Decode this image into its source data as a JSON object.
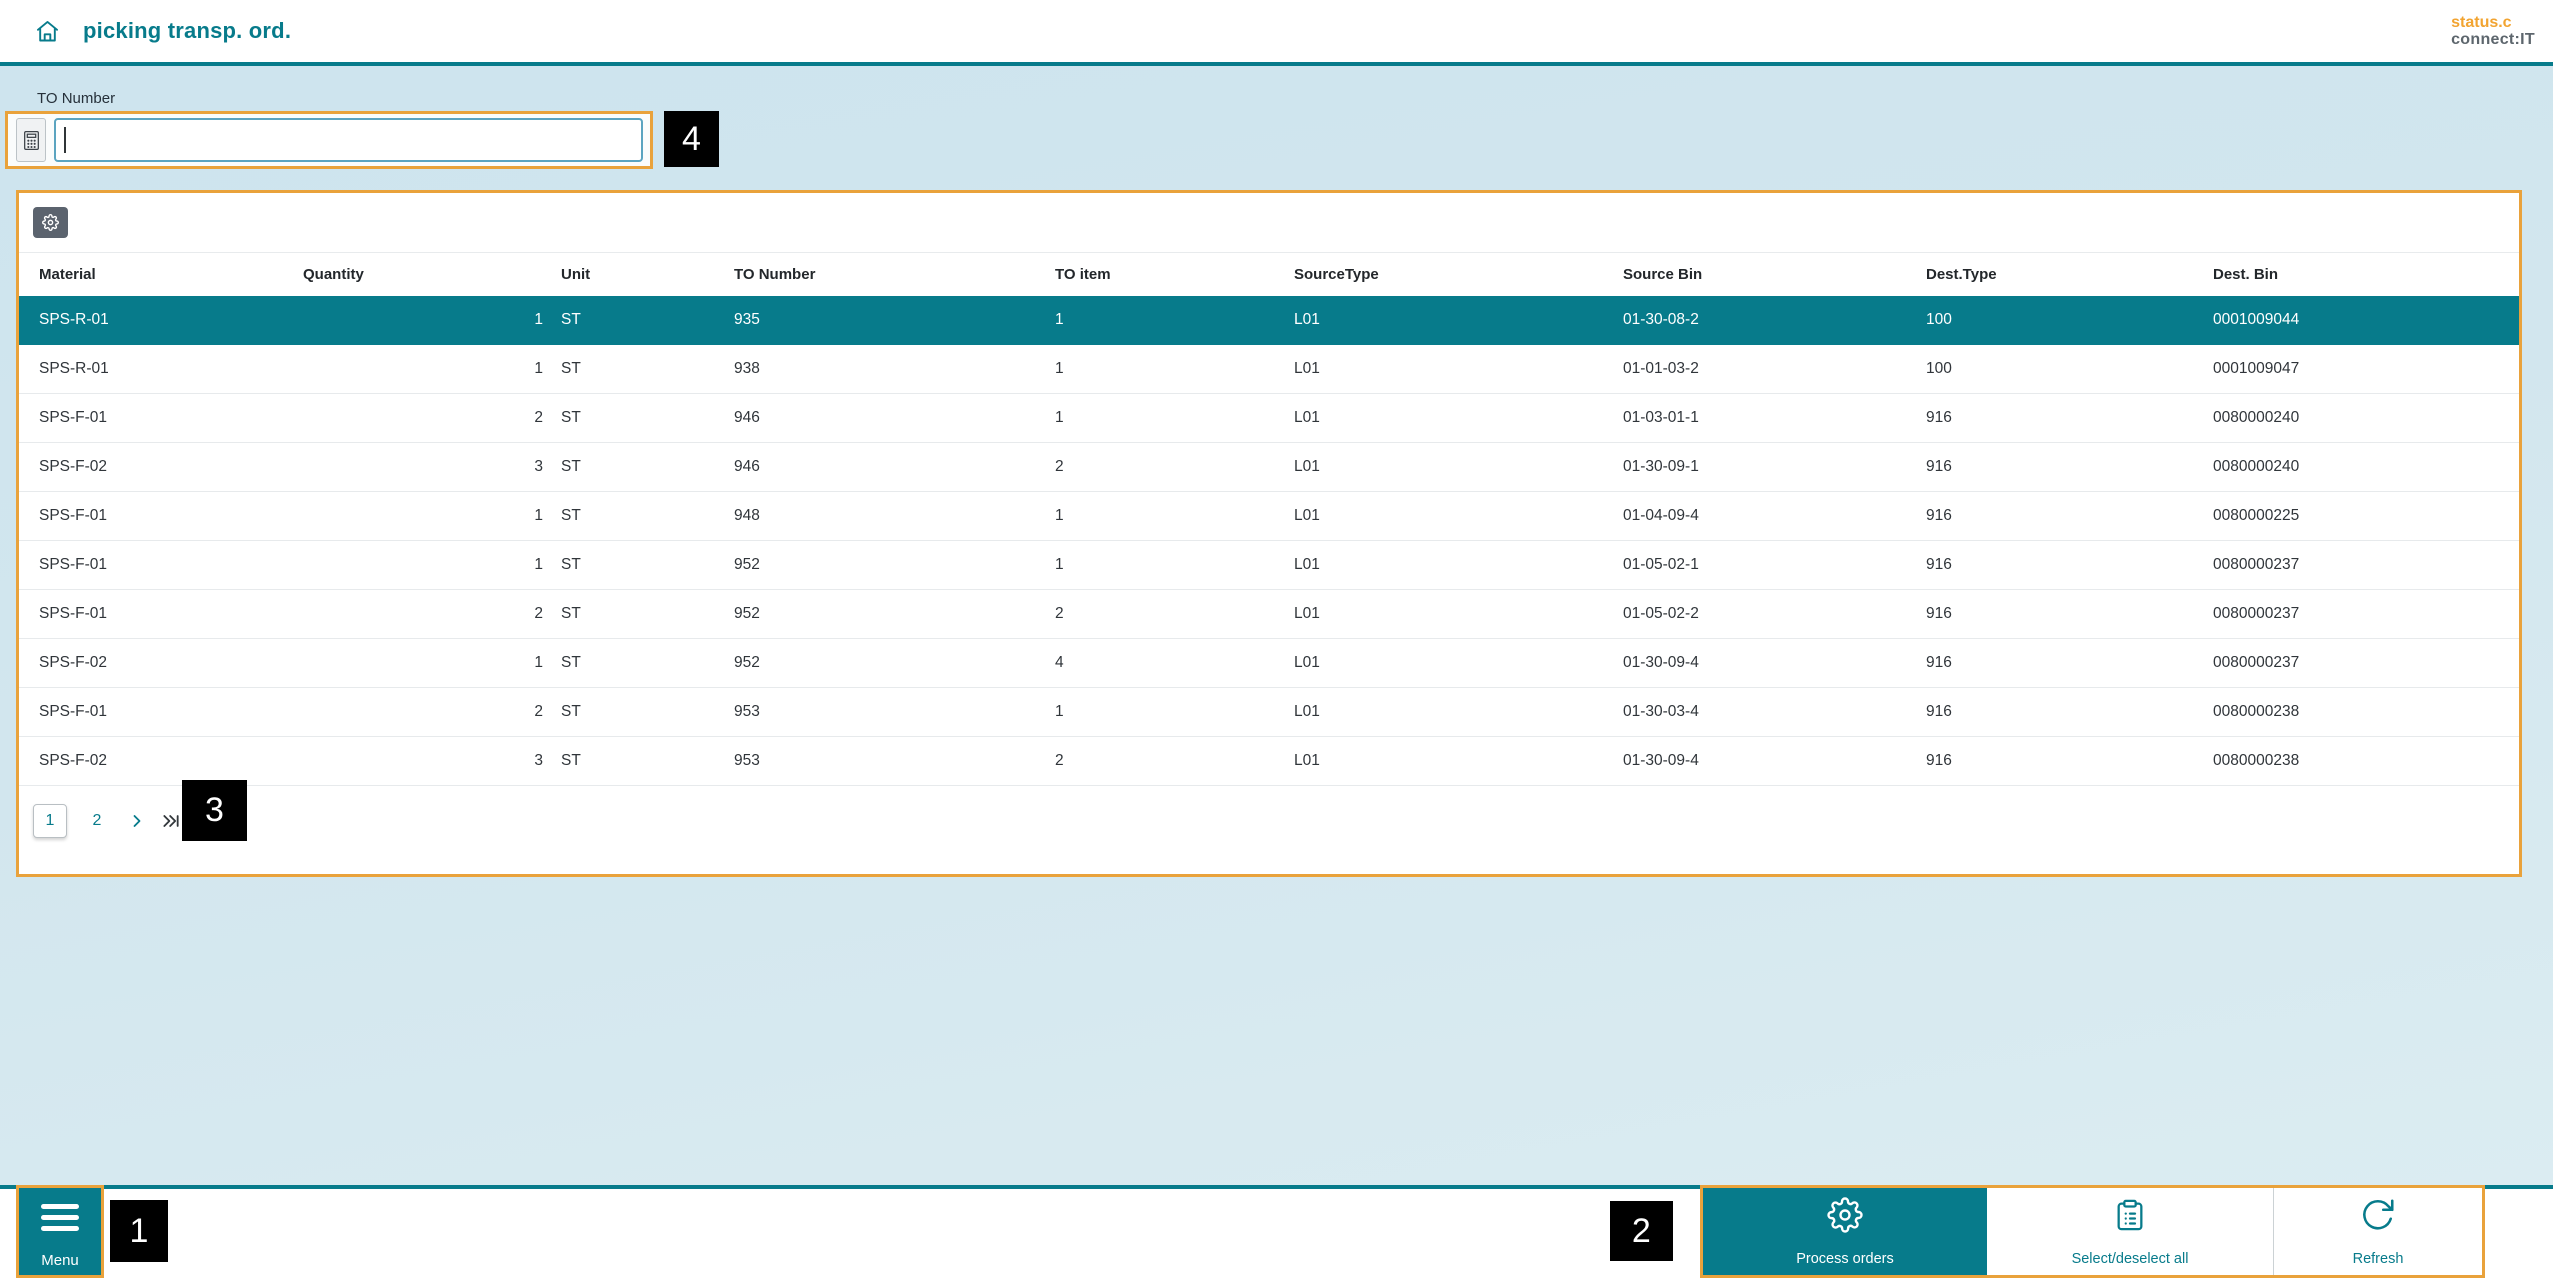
{
  "colors": {
    "accent": "#077b8b",
    "highlight": "#e9a23b",
    "logo_orange": "#f2a431",
    "logo_gray": "#5d666d",
    "page_bg_top": "#cde4ee",
    "page_bg_bottom": "#dcedf2",
    "selected_row_bg": "#077b8b",
    "annotation_bg": "#000000"
  },
  "header": {
    "title": "picking transp. ord.",
    "brand_line1": "status.c",
    "brand_line2": "connect:IT"
  },
  "filter": {
    "label": "TO Number",
    "value": ""
  },
  "table": {
    "columns": [
      "Material",
      "Quantity",
      "Unit",
      "TO Number",
      "TO item",
      "SourceType",
      "Source Bin",
      "Dest.Type",
      "Dest. Bin"
    ],
    "rows": [
      {
        "cells": [
          "SPS-R-01",
          "1",
          "ST",
          "935",
          "1",
          "L01",
          "01-30-08-2",
          "100",
          "0001009044"
        ],
        "selected": true
      },
      {
        "cells": [
          "SPS-R-01",
          "1",
          "ST",
          "938",
          "1",
          "L01",
          "01-01-03-2",
          "100",
          "0001009047"
        ],
        "selected": false
      },
      {
        "cells": [
          "SPS-F-01",
          "2",
          "ST",
          "946",
          "1",
          "L01",
          "01-03-01-1",
          "916",
          "0080000240"
        ],
        "selected": false
      },
      {
        "cells": [
          "SPS-F-02",
          "3",
          "ST",
          "946",
          "2",
          "L01",
          "01-30-09-1",
          "916",
          "0080000240"
        ],
        "selected": false
      },
      {
        "cells": [
          "SPS-F-01",
          "1",
          "ST",
          "948",
          "1",
          "L01",
          "01-04-09-4",
          "916",
          "0080000225"
        ],
        "selected": false
      },
      {
        "cells": [
          "SPS-F-01",
          "1",
          "ST",
          "952",
          "1",
          "L01",
          "01-05-02-1",
          "916",
          "0080000237"
        ],
        "selected": false
      },
      {
        "cells": [
          "SPS-F-01",
          "2",
          "ST",
          "952",
          "2",
          "L01",
          "01-05-02-2",
          "916",
          "0080000237"
        ],
        "selected": false
      },
      {
        "cells": [
          "SPS-F-02",
          "1",
          "ST",
          "952",
          "4",
          "L01",
          "01-30-09-4",
          "916",
          "0080000237"
        ],
        "selected": false
      },
      {
        "cells": [
          "SPS-F-01",
          "2",
          "ST",
          "953",
          "1",
          "L01",
          "01-30-03-4",
          "916",
          "0080000238"
        ],
        "selected": false
      },
      {
        "cells": [
          "SPS-F-02",
          "3",
          "ST",
          "953",
          "2",
          "L01",
          "01-30-09-4",
          "916",
          "0080000238"
        ],
        "selected": false
      }
    ]
  },
  "pagination": {
    "pages": [
      "1",
      "2"
    ],
    "current_page": "1"
  },
  "annotations": {
    "menu": "1",
    "actions": "2",
    "pagination": "3",
    "filter": "4"
  },
  "bottom_bar": {
    "menu_label": "Menu",
    "buttons": [
      {
        "label": "Process orders",
        "icon": "gear-icon",
        "primary": true
      },
      {
        "label": "Select/deselect all",
        "icon": "clipboard-icon",
        "primary": false
      },
      {
        "label": "Refresh",
        "icon": "refresh-icon",
        "primary": false
      }
    ]
  }
}
